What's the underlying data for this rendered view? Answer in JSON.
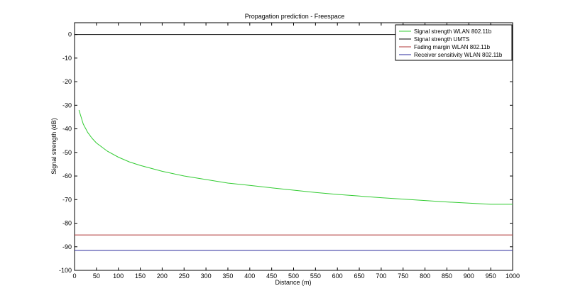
{
  "chart_data": {
    "type": "line",
    "title": "Propagation prediction - Freespace",
    "xlabel": "Distance (m)",
    "ylabel": "Signal strength (dB)",
    "xlim": [
      0,
      1000
    ],
    "ylim": [
      -100,
      5
    ],
    "xticks": [
      0,
      50,
      100,
      150,
      200,
      250,
      300,
      350,
      400,
      450,
      500,
      550,
      600,
      650,
      700,
      750,
      800,
      850,
      900,
      950,
      1000
    ],
    "yticks": [
      0,
      -10,
      -20,
      -30,
      -40,
      -50,
      -60,
      -70,
      -80,
      -90,
      -100
    ],
    "grid": false,
    "legend_position": "top-right",
    "series": [
      {
        "name": "Signal strength WLAN 802.11b",
        "color": "#33cc33",
        "x": [
          10,
          20,
          30,
          40,
          50,
          75,
          100,
          125,
          150,
          200,
          250,
          300,
          350,
          400,
          450,
          500,
          550,
          600,
          650,
          700,
          750,
          800,
          850,
          900,
          950,
          1000
        ],
        "y": [
          -32,
          -38,
          -41.5,
          -44,
          -46,
          -49.5,
          -52,
          -54,
          -55.5,
          -58,
          -60,
          -61.5,
          -63,
          -64,
          -65,
          -66,
          -67,
          -67.8,
          -68.5,
          -69.2,
          -69.8,
          -70.4,
          -71,
          -71.5,
          -72,
          -72
        ]
      },
      {
        "name": "Signal strength UMTS",
        "color": "#000000",
        "x": [
          0,
          1000
        ],
        "y": [
          0,
          0
        ]
      },
      {
        "name": "Fading margin WLAN 802.11b",
        "color": "#b03a3a",
        "x": [
          0,
          1000
        ],
        "y": [
          -85,
          -85
        ]
      },
      {
        "name": "Receiver sensitivity WLAN 802.11b",
        "color": "#2a2a9c",
        "x": [
          0,
          1000
        ],
        "y": [
          -91.5,
          -91.5
        ]
      }
    ]
  }
}
